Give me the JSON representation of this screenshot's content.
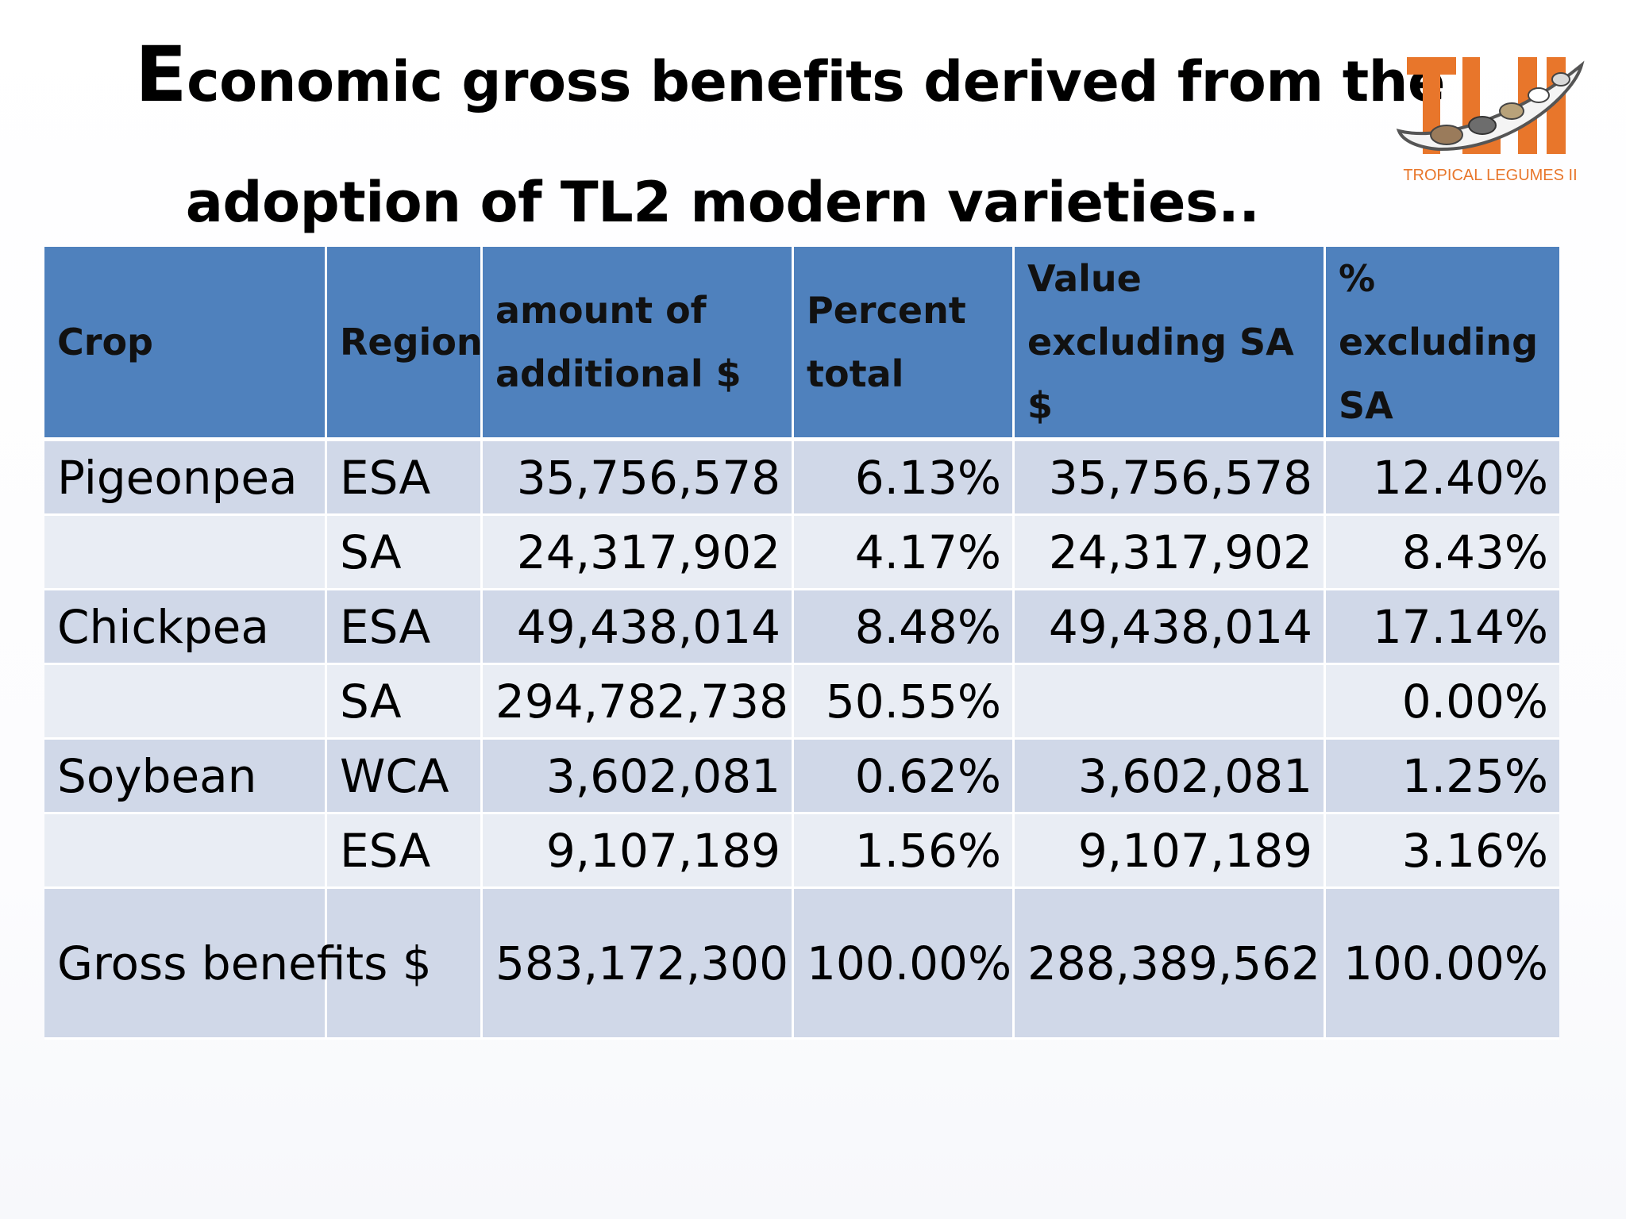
{
  "slide": {
    "title_first_letter": "E",
    "title_line1_rest": "conomic gross benefits derived from the",
    "title_line2": "adoption of TL2 modern varieties..",
    "logo_text": "TLII",
    "logo_subtitle": "TROPICAL LEGUMES II",
    "colors": {
      "header_bg": "#4f81bd",
      "row_odd": "#d0d8e8",
      "row_even": "#e9edf4",
      "logo_orange": "#e8762b"
    }
  },
  "table": {
    "headers": [
      "Crop",
      "Region",
      "amount of additional $",
      "Percent total",
      "Value excluding SA $",
      "% excluding SA"
    ],
    "rows": [
      {
        "crop": "Pigeonpea",
        "region": "ESA",
        "amount": "35,756,578",
        "percent": "6.13%",
        "value_excl": "35,756,578",
        "pct_excl": "12.40%"
      },
      {
        "crop": "",
        "region": "SA",
        "amount": "24,317,902",
        "percent": "4.17%",
        "value_excl": "24,317,902",
        "pct_excl": "8.43%"
      },
      {
        "crop": "Chickpea",
        "region": "ESA",
        "amount": "49,438,014",
        "percent": "8.48%",
        "value_excl": "49,438,014",
        "pct_excl": "17.14%"
      },
      {
        "crop": "",
        "region": "SA",
        "amount": "294,782,738",
        "percent": "50.55%",
        "value_excl": "",
        "pct_excl": "0.00%"
      },
      {
        "crop": "Soybean",
        "region": "WCA",
        "amount": "3,602,081",
        "percent": "0.62%",
        "value_excl": "3,602,081",
        "pct_excl": "1.25%"
      },
      {
        "crop": "",
        "region": "ESA",
        "amount": "9,107,189",
        "percent": "1.56%",
        "value_excl": "9,107,189",
        "pct_excl": "3.16%"
      }
    ],
    "total": {
      "label": "Gross benefits $",
      "region": "",
      "amount": "583,172,300",
      "percent": "100.00%",
      "value_excl": "288,389,562",
      "pct_excl": "100.00%"
    }
  }
}
